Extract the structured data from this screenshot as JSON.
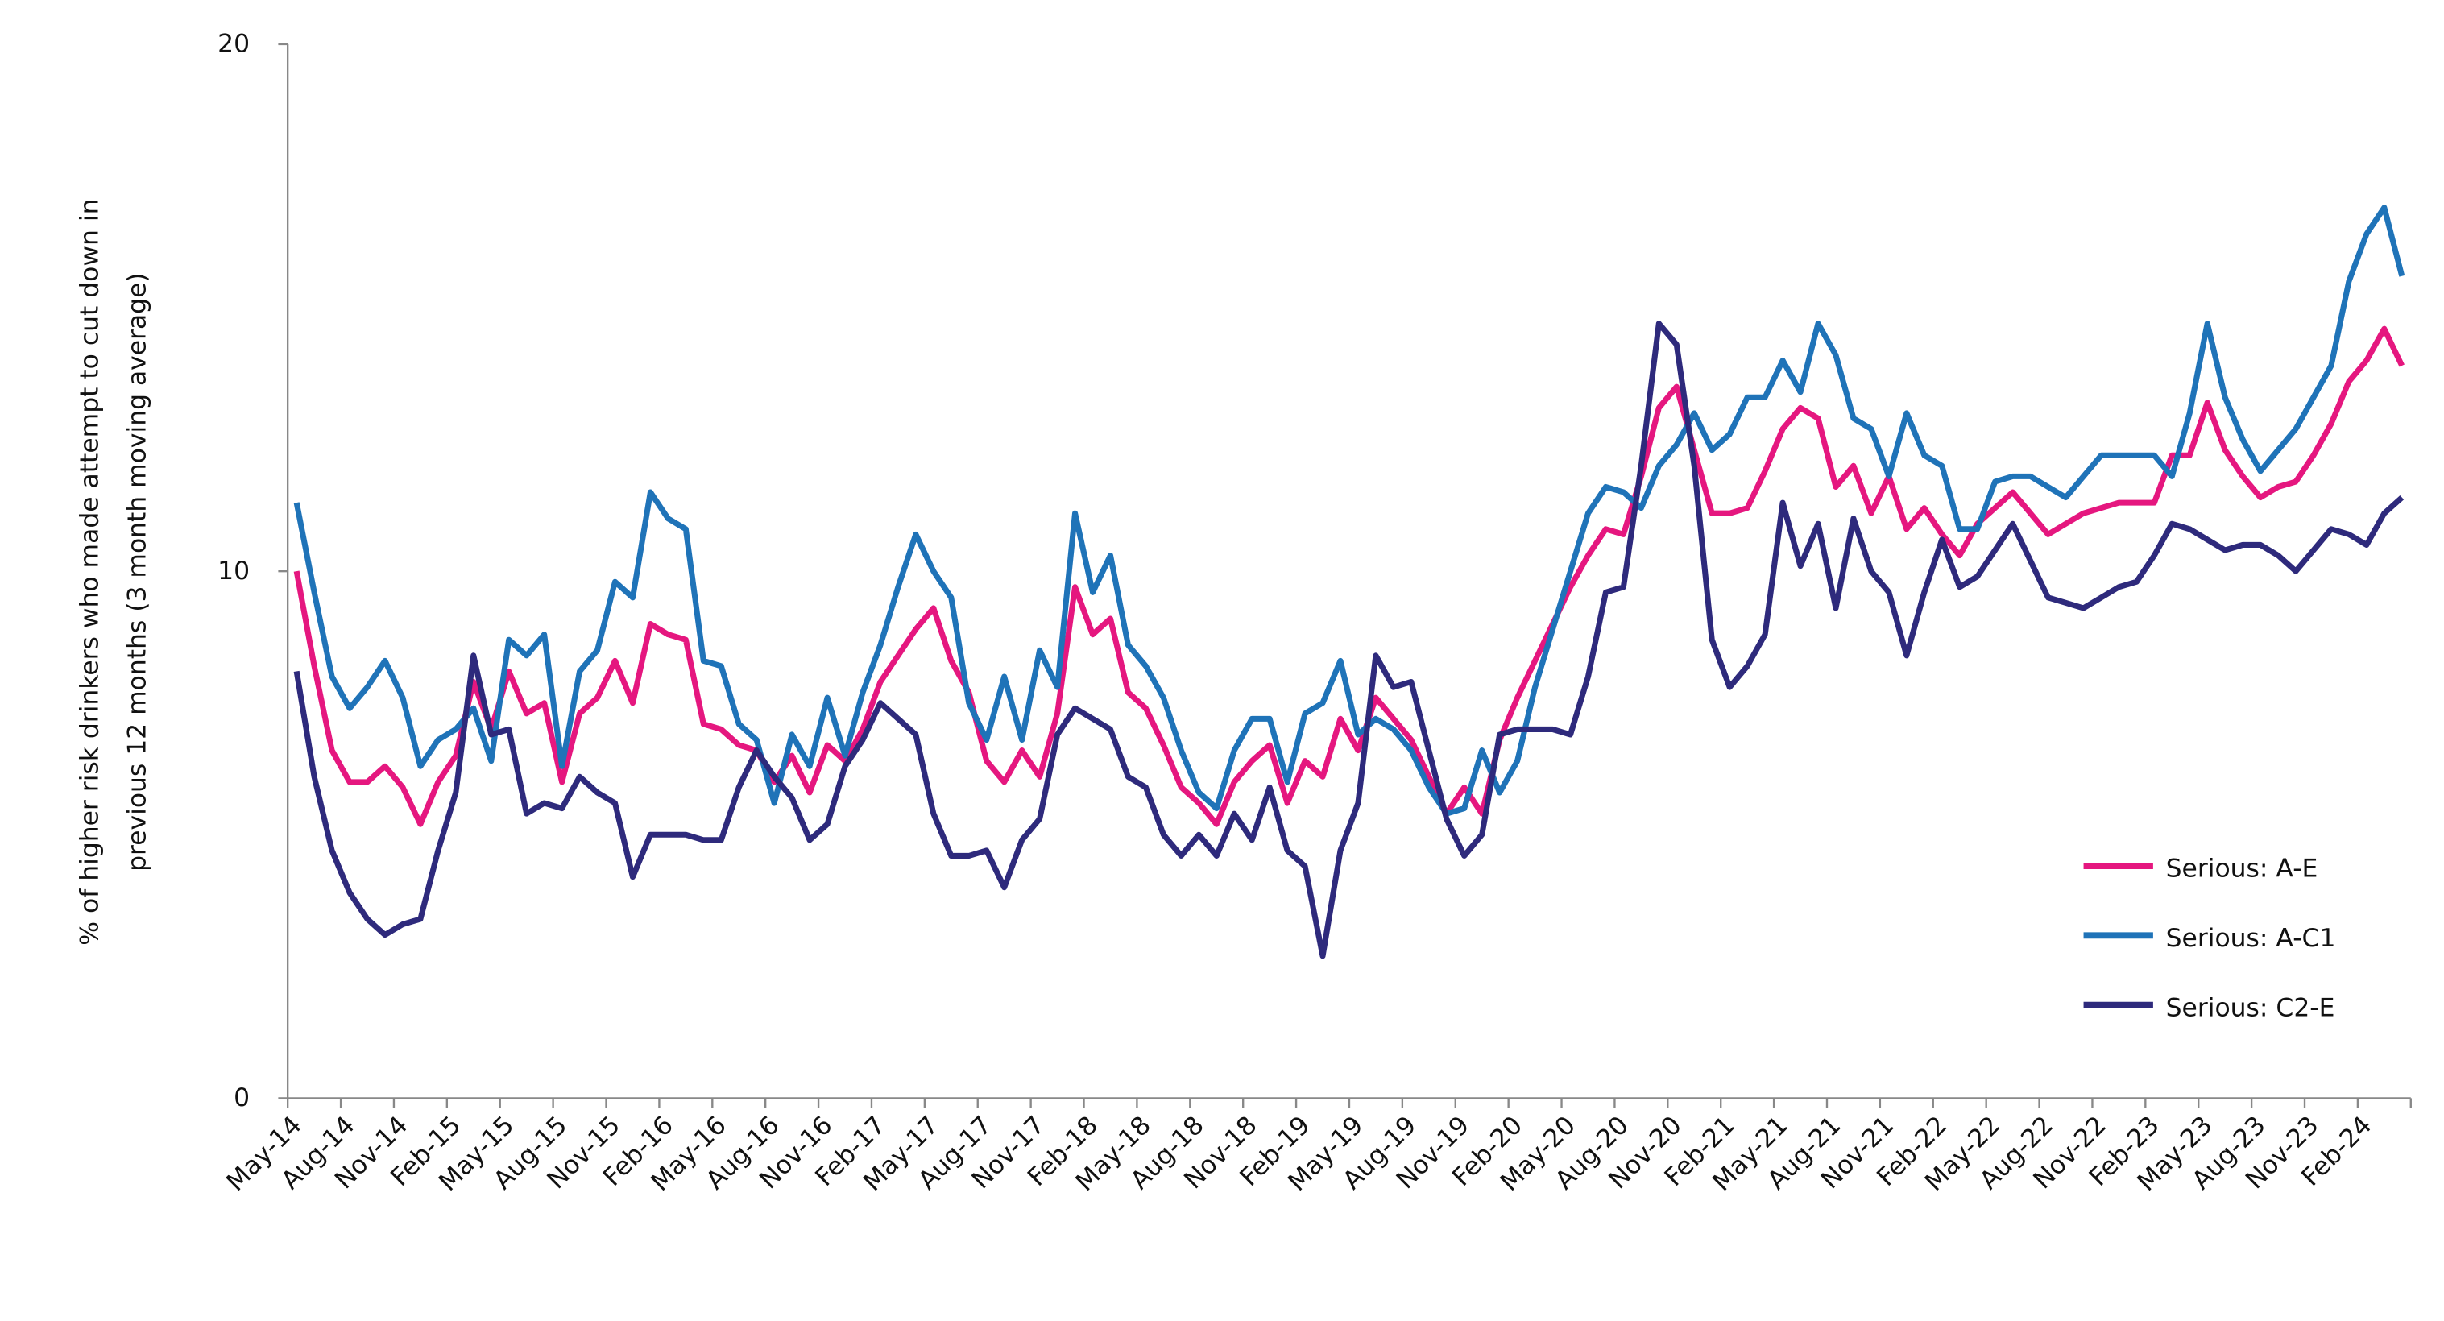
{
  "chart_data": {
    "type": "line",
    "y_label": [
      "% of higher risk drinkers who made attempt to cut down in",
      "previous 12 months (3 month moving average)"
    ],
    "categories": [
      "May-14",
      null,
      null,
      "Aug-14",
      null,
      null,
      "Nov-14",
      null,
      null,
      "Feb-15",
      null,
      null,
      "May-15",
      null,
      null,
      "Aug-15",
      null,
      null,
      "Nov-15",
      null,
      null,
      "Feb-16",
      null,
      null,
      "May-16",
      null,
      null,
      "Aug-16",
      null,
      null,
      "Nov-16",
      null,
      null,
      "Feb-17",
      null,
      null,
      "May-17",
      null,
      null,
      "Aug-17",
      null,
      null,
      "Nov-17",
      null,
      null,
      "Feb-18",
      null,
      null,
      "May-18",
      null,
      null,
      "Aug-18",
      null,
      null,
      "Nov-18",
      null,
      null,
      "Feb-19",
      null,
      null,
      "May-19",
      null,
      null,
      "Aug-19",
      null,
      null,
      "Nov-19",
      null,
      null,
      "Feb-20",
      null,
      null,
      "May-20",
      null,
      null,
      "Aug-20",
      null,
      null,
      "Nov-20",
      null,
      null,
      "Feb-21",
      null,
      null,
      "May-21",
      null,
      null,
      "Aug-21",
      null,
      null,
      "Nov-21",
      null,
      null,
      "Feb-22",
      null,
      null,
      "May-22",
      null,
      null,
      "Aug-22",
      null,
      null,
      "Nov-22",
      null,
      null,
      "Feb-23",
      null,
      null,
      "May-23",
      null,
      null,
      "Aug-23",
      null,
      null,
      "Nov-23",
      null,
      null,
      "Feb-24",
      null,
      null
    ],
    "series": [
      {
        "name": "Serious: A-E",
        "color": "#e5177f",
        "values": [
          10.0,
          8.2,
          6.6,
          6.0,
          6.0,
          6.3,
          5.9,
          5.2,
          6.0,
          6.5,
          7.9,
          7.0,
          8.1,
          7.3,
          7.5,
          6.0,
          7.3,
          7.6,
          8.3,
          7.5,
          9.0,
          8.8,
          8.7,
          7.1,
          7.0,
          6.7,
          6.6,
          6.0,
          6.5,
          5.8,
          6.7,
          6.4,
          7.0,
          7.9,
          8.4,
          8.9,
          9.3,
          8.3,
          7.7,
          6.4,
          6.0,
          6.6,
          6.1,
          7.3,
          9.7,
          8.8,
          9.1,
          7.7,
          7.4,
          6.7,
          5.9,
          5.6,
          5.2,
          6.0,
          6.4,
          6.7,
          5.6,
          6.4,
          6.1,
          7.2,
          6.6,
          7.6,
          7.2,
          6.8,
          6.1,
          5.4,
          5.9,
          5.4,
          6.8,
          7.6,
          8.3,
          9.0,
          9.7,
          10.3,
          10.8,
          10.7,
          11.8,
          13.1,
          13.5,
          12.3,
          11.1,
          11.1,
          11.2,
          11.9,
          12.7,
          13.1,
          12.9,
          11.6,
          12.0,
          11.1,
          11.8,
          10.8,
          11.2,
          10.7,
          10.3,
          10.9,
          11.2,
          11.5,
          11.1,
          10.7,
          10.9,
          11.1,
          11.2,
          11.3,
          11.3,
          11.3,
          12.2,
          12.2,
          13.2,
          12.3,
          11.8,
          11.4,
          11.6,
          11.7,
          12.2,
          12.8,
          13.6,
          14.0,
          14.6,
          13.9
        ]
      },
      {
        "name": "Serious: A-C1",
        "color": "#1f73b8",
        "values": [
          11.3,
          9.6,
          8.0,
          7.4,
          7.8,
          8.3,
          7.6,
          6.3,
          6.8,
          7.0,
          7.4,
          6.4,
          8.7,
          8.4,
          8.8,
          6.3,
          8.1,
          8.5,
          9.8,
          9.5,
          11.5,
          11.0,
          10.8,
          8.3,
          8.2,
          7.1,
          6.8,
          5.6,
          6.9,
          6.3,
          7.6,
          6.5,
          7.7,
          8.6,
          9.7,
          10.7,
          10.0,
          9.5,
          7.5,
          6.8,
          8.0,
          6.8,
          8.5,
          7.8,
          11.1,
          9.6,
          10.3,
          8.6,
          8.2,
          7.6,
          6.6,
          5.8,
          5.5,
          6.6,
          7.2,
          7.2,
          6.0,
          7.3,
          7.5,
          8.3,
          6.9,
          7.2,
          7.0,
          6.6,
          5.9,
          5.4,
          5.5,
          6.6,
          5.8,
          6.4,
          7.8,
          8.9,
          10.0,
          11.1,
          11.6,
          11.5,
          11.2,
          12.0,
          12.4,
          13.0,
          12.3,
          12.6,
          13.3,
          13.3,
          14.0,
          13.4,
          14.7,
          14.1,
          12.9,
          12.7,
          11.8,
          13.0,
          12.2,
          12.0,
          10.8,
          10.8,
          11.7,
          11.8,
          11.8,
          11.6,
          11.4,
          11.8,
          12.2,
          12.2,
          12.2,
          12.2,
          11.8,
          13.0,
          14.7,
          13.3,
          12.5,
          11.9,
          12.3,
          12.7,
          13.3,
          13.9,
          15.5,
          16.4,
          16.9,
          15.6
        ]
      },
      {
        "name": "Serious: C2-E",
        "color": "#2e2a7c",
        "values": [
          8.1,
          6.1,
          4.7,
          3.9,
          3.4,
          3.1,
          3.3,
          3.4,
          4.7,
          5.8,
          8.4,
          6.9,
          7.0,
          5.4,
          5.6,
          5.5,
          6.1,
          5.8,
          5.6,
          4.2,
          5.0,
          5.0,
          5.0,
          4.9,
          4.9,
          5.9,
          6.6,
          6.1,
          5.7,
          4.9,
          5.2,
          6.3,
          6.8,
          7.5,
          7.2,
          6.9,
          5.4,
          4.6,
          4.6,
          4.7,
          4.0,
          4.9,
          5.3,
          6.9,
          7.4,
          7.2,
          7.0,
          6.1,
          5.9,
          5.0,
          4.6,
          5.0,
          4.6,
          5.4,
          4.9,
          5.9,
          4.7,
          4.4,
          2.7,
          4.7,
          5.6,
          8.4,
          7.8,
          7.9,
          6.6,
          5.3,
          4.6,
          5.0,
          6.9,
          7.0,
          7.0,
          7.0,
          6.9,
          8.0,
          9.6,
          9.7,
          12.0,
          14.7,
          14.3,
          12.0,
          8.7,
          7.8,
          8.2,
          8.8,
          11.3,
          10.1,
          10.9,
          9.3,
          11.0,
          10.0,
          9.6,
          8.4,
          9.6,
          10.6,
          9.7,
          9.9,
          10.4,
          10.9,
          10.2,
          9.5,
          9.4,
          9.3,
          9.5,
          9.7,
          9.8,
          10.3,
          10.9,
          10.8,
          10.6,
          10.4,
          10.5,
          10.5,
          10.3,
          10.0,
          10.4,
          10.8,
          10.7,
          10.5,
          11.1,
          11.4
        ]
      }
    ],
    "ylim": [
      0,
      20
    ],
    "yticks": [
      0,
      10,
      20
    ],
    "grid": false,
    "legend": "right"
  }
}
